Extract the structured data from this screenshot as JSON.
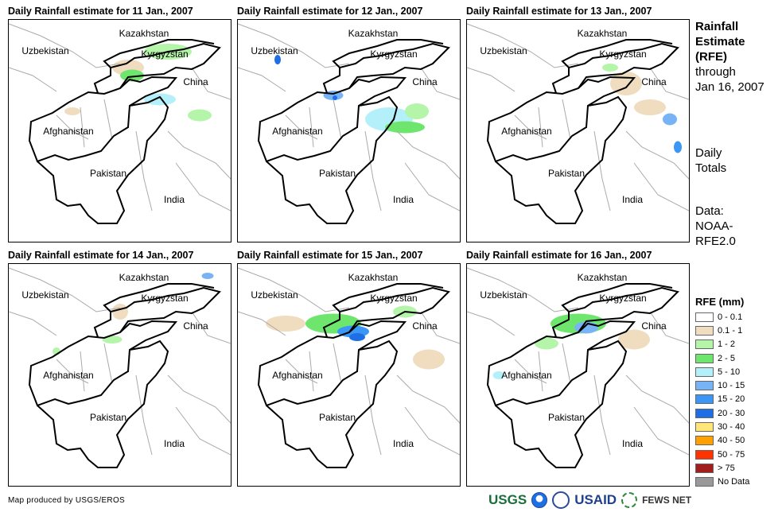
{
  "panels": [
    {
      "title": "Daily Rainfall estimate for 11 Jan., 2007"
    },
    {
      "title": "Daily Rainfall estimate for 12 Jan., 2007"
    },
    {
      "title": "Daily Rainfall estimate for 13 Jan., 2007"
    },
    {
      "title": "Daily Rainfall estimate for 14 Jan., 2007"
    },
    {
      "title": "Daily Rainfall estimate for 15 Jan., 2007"
    },
    {
      "title": "Daily Rainfall estimate for 16 Jan., 2007"
    }
  ],
  "countries": {
    "kazakhstan": "Kazakhstan",
    "uzbekistan": "Uzbekistan",
    "kyrgyzstan": "Kyrgyzstan",
    "china": "China",
    "afghanistan": "Afghanistan",
    "pakistan": "Pakistan",
    "india": "India"
  },
  "side": {
    "title1": "Rainfall",
    "title2": "Estimate",
    "title3": "(RFE)",
    "through": "through",
    "date": "Jan 16, 2007",
    "daily1": "Daily",
    "daily2": "Totals",
    "data1": "Data:",
    "data2": "NOAA-",
    "data3": "RFE2.0"
  },
  "legend": {
    "title": "RFE (mm)",
    "items": [
      {
        "label": "0 - 0.1",
        "color": "#ffffff"
      },
      {
        "label": "0.1 - 1",
        "color": "#f0dcbe"
      },
      {
        "label": "1 - 2",
        "color": "#b4f5aa"
      },
      {
        "label": "2 - 5",
        "color": "#6ee66e"
      },
      {
        "label": "5 - 10",
        "color": "#b4f0fa"
      },
      {
        "label": "10 - 15",
        "color": "#78b4f5"
      },
      {
        "label": "15 - 20",
        "color": "#3c96f5"
      },
      {
        "label": "20 - 30",
        "color": "#1e6ee6"
      },
      {
        "label": "30 - 40",
        "color": "#ffe678"
      },
      {
        "label": "40 - 50",
        "color": "#ffa000"
      },
      {
        "label": "50 - 75",
        "color": "#ff3200"
      },
      {
        "label": "> 75",
        "color": "#a01e1e"
      },
      {
        "label": "No Data",
        "color": "#999999"
      }
    ]
  },
  "footer": {
    "credit": "Map produced by USGS/EROS",
    "logos": [
      "USGS",
      "NOAA",
      "DOI",
      "USAID",
      "FEWS NET"
    ]
  }
}
